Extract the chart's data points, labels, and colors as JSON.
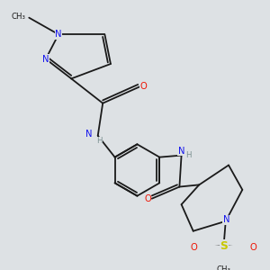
{
  "background_color": "#dde1e4",
  "bond_color": "#1a1a1a",
  "N_color": "#1414ee",
  "O_color": "#ee1100",
  "S_color": "#c8c800",
  "C_color": "#1a1a1a",
  "H_color": "#7a9090",
  "lw": 1.3,
  "fs": 7.2,
  "fs_small": 6.2,
  "figsize": [
    3.0,
    3.0
  ],
  "dpi": 100,
  "xlim": [
    0,
    10
  ],
  "ylim": [
    0,
    10
  ]
}
